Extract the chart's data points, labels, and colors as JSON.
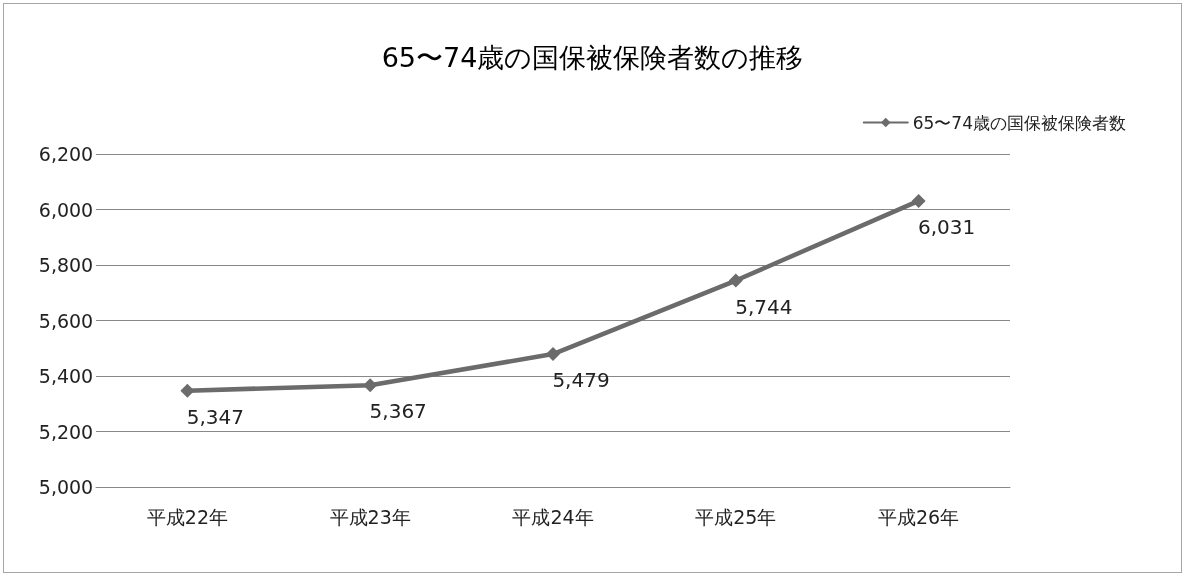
{
  "chart_data": {
    "type": "line",
    "title": "65〜74歳の国保被保険者数の推移",
    "categories": [
      "平成22年",
      "平成23年",
      "平成24年",
      "平成25年",
      "平成26年"
    ],
    "series": [
      {
        "name": "65〜74歳の国保被保険者数",
        "color": "#6b6b6b",
        "values": [
          5347,
          5367,
          5479,
          5744,
          6031
        ],
        "value_labels": [
          "5,347",
          "5,367",
          "5,479",
          "5,744",
          "6,031"
        ]
      }
    ],
    "ylim": [
      5000,
      6200
    ],
    "yticks": [
      {
        "value": 5000,
        "label": "5,000"
      },
      {
        "value": 5200,
        "label": "5,200"
      },
      {
        "value": 5400,
        "label": "5,400"
      },
      {
        "value": 5600,
        "label": "5,600"
      },
      {
        "value": 5800,
        "label": "5,800"
      },
      {
        "value": 6000,
        "label": "6,000"
      },
      {
        "value": 6200,
        "label": "6,200"
      }
    ],
    "grid": "y",
    "legend": "top right",
    "marker": "diamond",
    "line_style": "solid"
  }
}
